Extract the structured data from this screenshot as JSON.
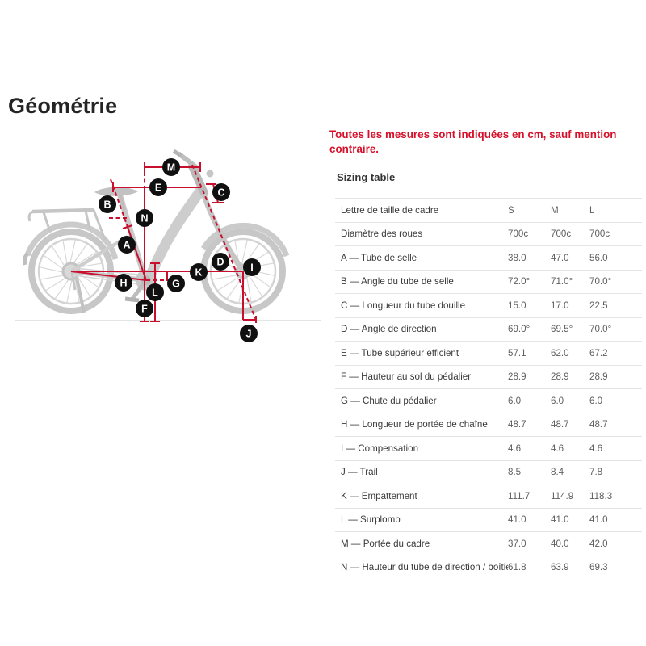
{
  "page": {
    "title": "Géométrie",
    "note": "Toutes les mesures sont indiquées en cm, sauf mention contraire."
  },
  "colors": {
    "accent_red": "#c8102e",
    "note_red": "#d6112b",
    "marker_black": "#101010",
    "bike_gray": "#cccccc"
  },
  "diagram": {
    "description": "bike-geometry-diagram",
    "markers": [
      {
        "letter": "A"
      },
      {
        "letter": "B"
      },
      {
        "letter": "C"
      },
      {
        "letter": "D"
      },
      {
        "letter": "E"
      },
      {
        "letter": "F"
      },
      {
        "letter": "G"
      },
      {
        "letter": "H"
      },
      {
        "letter": "I"
      },
      {
        "letter": "J"
      },
      {
        "letter": "K"
      },
      {
        "letter": "L"
      },
      {
        "letter": "M"
      },
      {
        "letter": "N"
      }
    ]
  },
  "table": {
    "section_title": "Sizing table",
    "header": {
      "label": "Lettre de taille de cadre",
      "columns": [
        "S",
        "M",
        "L"
      ]
    },
    "rows": [
      {
        "label": "Diamètre des roues",
        "values": [
          "700c",
          "700c",
          "700c"
        ]
      },
      {
        "label": "A — Tube de selle",
        "values": [
          "38.0",
          "47.0",
          "56.0"
        ]
      },
      {
        "label": "B — Angle du tube de selle",
        "values": [
          "72.0°",
          "71.0°",
          "70.0°"
        ]
      },
      {
        "label": "C — Longueur du tube douille",
        "values": [
          "15.0",
          "17.0",
          "22.5"
        ]
      },
      {
        "label": "D — Angle de direction",
        "values": [
          "69.0°",
          "69.5°",
          "70.0°"
        ]
      },
      {
        "label": "E — Tube supérieur efficient",
        "values": [
          "57.1",
          "62.0",
          "67.2"
        ]
      },
      {
        "label": "F — Hauteur au sol du pédalier",
        "values": [
          "28.9",
          "28.9",
          "28.9"
        ]
      },
      {
        "label": "G — Chute du pédalier",
        "values": [
          "6.0",
          "6.0",
          "6.0"
        ]
      },
      {
        "label": "H — Longueur de portée de chaîne",
        "values": [
          "48.7",
          "48.7",
          "48.7"
        ]
      },
      {
        "label": "I — Compensation",
        "values": [
          "4.6",
          "4.6",
          "4.6"
        ]
      },
      {
        "label": "J — Trail",
        "values": [
          "8.5",
          "8.4",
          "7.8"
        ]
      },
      {
        "label": "K — Empattement",
        "values": [
          "111.7",
          "114.9",
          "118.3"
        ]
      },
      {
        "label": "L — Surplomb",
        "values": [
          "41.0",
          "41.0",
          "41.0"
        ]
      },
      {
        "label": "M — Portée du cadre",
        "values": [
          "37.0",
          "40.0",
          "42.0"
        ]
      },
      {
        "label": "N — Hauteur du tube de direction / boîtier",
        "values": [
          "61.8",
          "63.9",
          "69.3"
        ]
      }
    ]
  }
}
